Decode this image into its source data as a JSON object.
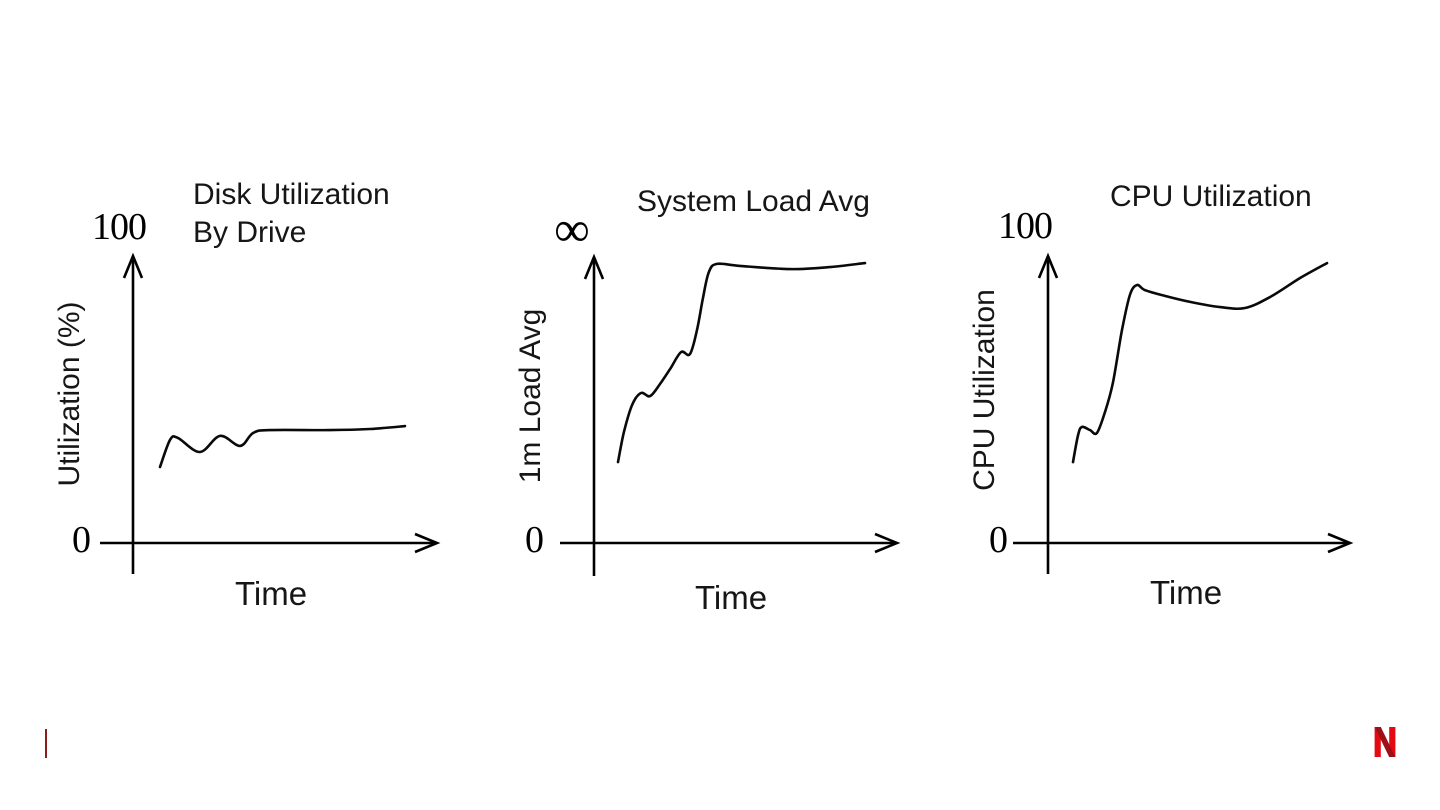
{
  "slide": {
    "background": "#ffffff"
  },
  "branding": {
    "netflix_logo_letter": "N",
    "netflix_red": "#e50914",
    "netflix_red_dark": "#9f1016",
    "left_marker_color": "#8b1e1b"
  },
  "chart_data": [
    {
      "type": "line",
      "title": "Disk Utilization",
      "title_line2": "By Drive",
      "xlabel": "Time",
      "ylabel": "Utilization (%)",
      "y_axis_top_label": "100",
      "y_axis_bottom_label": "0",
      "ylim": [
        0,
        100
      ],
      "legend": "none",
      "grid": false,
      "points": [
        [
          0,
          26.4
        ],
        [
          4.1,
          35.8
        ],
        [
          7.3,
          36.5
        ],
        [
          16.3,
          31.6
        ],
        [
          24.5,
          37.2
        ],
        [
          32.7,
          33.7
        ],
        [
          38.0,
          38.2
        ],
        [
          44.9,
          39.2
        ],
        [
          69.4,
          39.2
        ],
        [
          85.7,
          39.6
        ],
        [
          100,
          40.6
        ]
      ]
    },
    {
      "type": "line",
      "title": "System Load Avg",
      "xlabel": "Time",
      "ylabel": "1m Load Avg",
      "y_axis_top_label": "∞",
      "y_axis_bottom_label": "0",
      "legend": "none",
      "grid": false,
      "points": [
        [
          0,
          28.1
        ],
        [
          2.4,
          38.5
        ],
        [
          5.7,
          47.9
        ],
        [
          9.3,
          52.1
        ],
        [
          13.0,
          51.0
        ],
        [
          17.0,
          55.2
        ],
        [
          21.1,
          60.4
        ],
        [
          25.5,
          66.3
        ],
        [
          29.1,
          65.6
        ],
        [
          32.0,
          74.0
        ],
        [
          34.4,
          85.1
        ],
        [
          36.8,
          94.1
        ],
        [
          40.1,
          96.9
        ],
        [
          49.4,
          96.2
        ],
        [
          69.6,
          95.1
        ],
        [
          85.8,
          95.8
        ],
        [
          100,
          97.2
        ]
      ]
    },
    {
      "type": "line",
      "title": "CPU Utilization",
      "xlabel": "Time",
      "ylabel": "CPU Utilization",
      "y_axis_top_label": "100",
      "y_axis_bottom_label": "0",
      "ylim": [
        0,
        100
      ],
      "legend": "none",
      "grid": false,
      "points": [
        [
          0,
          28.1
        ],
        [
          2.0,
          37.5
        ],
        [
          3.5,
          40.3
        ],
        [
          6.7,
          39.2
        ],
        [
          9.4,
          38.2
        ],
        [
          12.6,
          45.5
        ],
        [
          15.7,
          55.6
        ],
        [
          19.3,
          74.0
        ],
        [
          22.4,
          86.1
        ],
        [
          25.2,
          89.6
        ],
        [
          28.3,
          87.8
        ],
        [
          36.2,
          85.8
        ],
        [
          46.1,
          83.7
        ],
        [
          57.9,
          81.9
        ],
        [
          67.7,
          81.6
        ],
        [
          77.6,
          85.4
        ],
        [
          89.4,
          92.0
        ],
        [
          100,
          97.2
        ]
      ]
    }
  ]
}
